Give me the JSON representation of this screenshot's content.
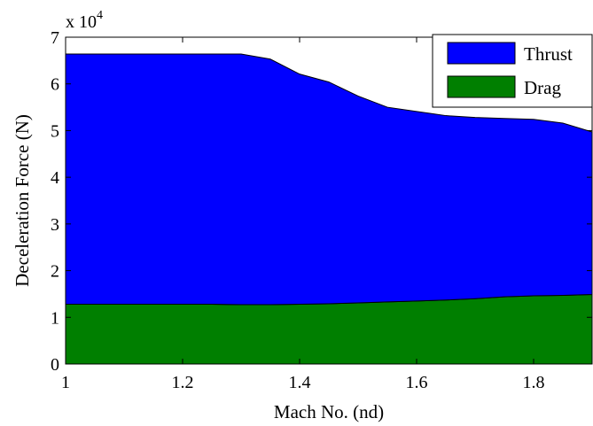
{
  "chart_data": {
    "type": "area",
    "stacked": true,
    "title": "",
    "xlabel": "Mach No. (nd)",
    "ylabel": "Deceleration Force (N)",
    "y_multiplier": "x 10",
    "y_multiplier_exponent": "4",
    "xlim": [
      1,
      1.9
    ],
    "ylim": [
      0,
      7
    ],
    "xticks": [
      1,
      1.2,
      1.4,
      1.6,
      1.8
    ],
    "xtick_labels": [
      "1",
      "1.2",
      "1.4",
      "1.6",
      "1.8"
    ],
    "yticks": [
      0,
      1,
      2,
      3,
      4,
      5,
      6,
      7
    ],
    "ytick_labels": [
      "0",
      "1",
      "2",
      "3",
      "4",
      "5",
      "6",
      "7"
    ],
    "grid": false,
    "legend_position": "top-right",
    "x": [
      1.0,
      1.05,
      1.1,
      1.15,
      1.2,
      1.25,
      1.3,
      1.35,
      1.4,
      1.45,
      1.5,
      1.55,
      1.6,
      1.65,
      1.7,
      1.75,
      1.8,
      1.85,
      1.9
    ],
    "series": [
      {
        "name": "Drag",
        "color": "#007f00",
        "values": [
          1.28,
          1.28,
          1.28,
          1.28,
          1.28,
          1.28,
          1.27,
          1.27,
          1.28,
          1.29,
          1.31,
          1.33,
          1.35,
          1.37,
          1.4,
          1.44,
          1.46,
          1.47,
          1.49
        ]
      },
      {
        "name": "Thrust",
        "color": "#0000ff",
        "values": [
          5.36,
          5.36,
          5.36,
          5.36,
          5.36,
          5.36,
          5.37,
          5.26,
          4.93,
          4.75,
          4.43,
          4.17,
          4.06,
          3.95,
          3.88,
          3.82,
          3.78,
          3.69,
          3.48
        ]
      }
    ]
  }
}
